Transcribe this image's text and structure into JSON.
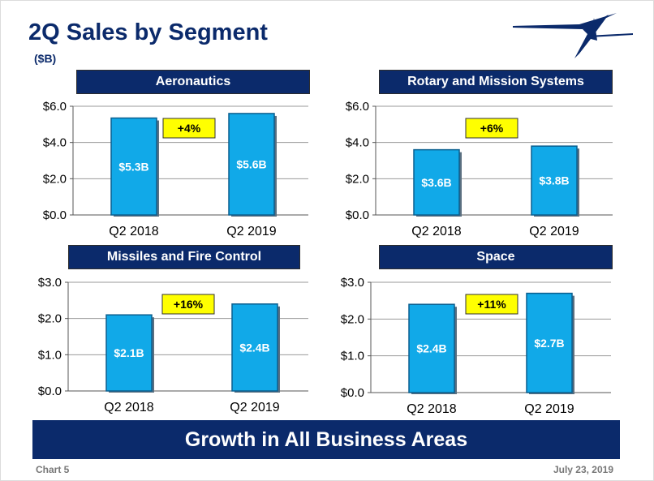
{
  "header": {
    "title": "2Q Sales by Segment",
    "unit": "($B)"
  },
  "banner": "Growth in All Business Areas",
  "footer": {
    "left": "Chart 5",
    "right": "July 23, 2019"
  },
  "colors": {
    "navy": "#0b2a6b",
    "bar": "#11a9e8",
    "bar_edge": "#0a5f8f",
    "badge": "#ffff00"
  },
  "icons": {
    "logo": "lockheed-star-logo"
  },
  "chart_data": [
    {
      "type": "bar",
      "title": "Aeronautics",
      "categories": [
        "Q2 2018",
        "Q2 2019"
      ],
      "values": [
        5.35,
        5.6
      ],
      "data_labels": [
        "$5.3B",
        "$5.6B"
      ],
      "yticks": [
        "$0.0",
        "$2.0",
        "$4.0",
        "$6.0"
      ],
      "ylim": [
        0,
        6
      ],
      "badge": "+4%"
    },
    {
      "type": "bar",
      "title": "Rotary and Mission Systems",
      "categories": [
        "Q2 2018",
        "Q2 2019"
      ],
      "values": [
        3.6,
        3.8
      ],
      "data_labels": [
        "$3.6B",
        "$3.8B"
      ],
      "yticks": [
        "$0.0",
        "$2.0",
        "$4.0",
        "$6.0"
      ],
      "ylim": [
        0,
        6
      ],
      "badge": "+6%"
    },
    {
      "type": "bar",
      "title": "Missiles and Fire Control",
      "categories": [
        "Q2 2018",
        "Q2 2019"
      ],
      "values": [
        2.1,
        2.4
      ],
      "data_labels": [
        "$2.1B",
        "$2.4B"
      ],
      "yticks": [
        "$0.0",
        "$1.0",
        "$2.0",
        "$3.0"
      ],
      "ylim": [
        0,
        3
      ],
      "badge": "+16%"
    },
    {
      "type": "bar",
      "title": "Space",
      "categories": [
        "Q2 2018",
        "Q2 2019"
      ],
      "values": [
        2.4,
        2.7
      ],
      "data_labels": [
        "$2.4B",
        "$2.7B"
      ],
      "yticks": [
        "$0.0",
        "$1.0",
        "$2.0",
        "$3.0"
      ],
      "ylim": [
        0,
        3
      ],
      "badge": "+11%"
    }
  ]
}
